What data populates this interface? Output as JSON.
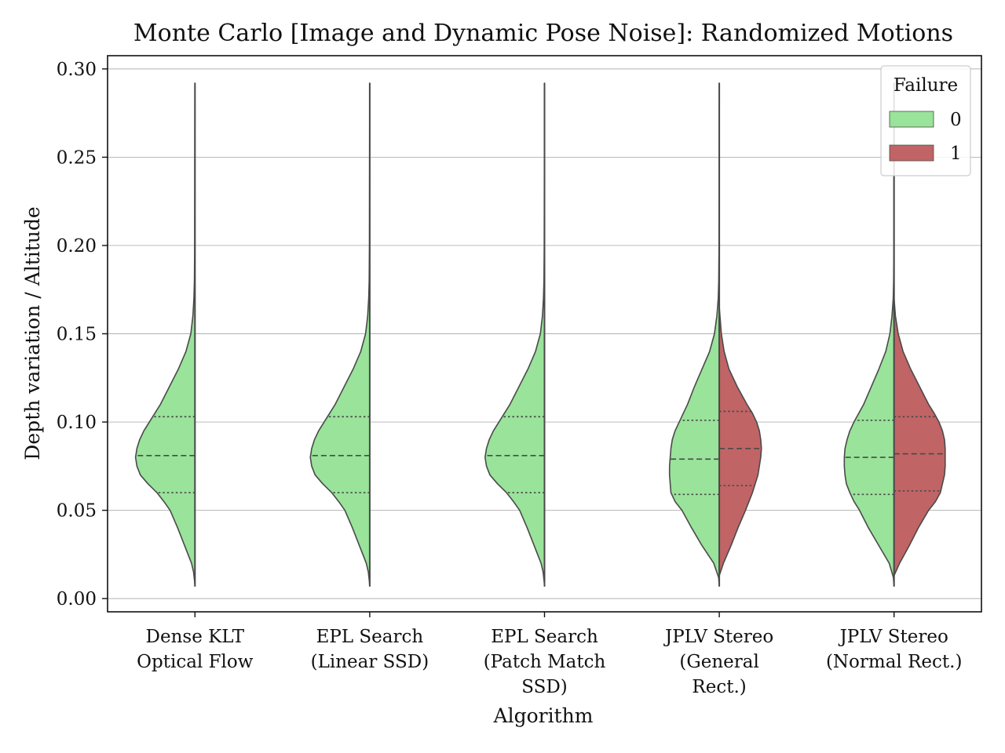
{
  "chart_data": {
    "type": "violin",
    "title": "Monte Carlo [Image and Dynamic Pose Noise]: Randomized Motions",
    "xlabel": "Algorithm",
    "ylabel": "Depth variation / Altitude",
    "ylim": [
      -0.0075,
      0.3075
    ],
    "yticks": [
      "0.00",
      "0.05",
      "0.10",
      "0.15",
      "0.20",
      "0.25",
      "0.30"
    ],
    "ytick_values": [
      0.0,
      0.05,
      0.1,
      0.15,
      0.2,
      0.25,
      0.3
    ],
    "grid": "horizontal",
    "split": true,
    "inner": "quartile",
    "legend": {
      "title": "Failure",
      "placement": "top-right",
      "entries": [
        "0",
        "1"
      ]
    },
    "colors": {
      "0": "#99e39a",
      "1": "#c16466",
      "outline": "#4a4a4a",
      "grid": "#b0b0b0"
    },
    "categories": [
      {
        "label_lines": [
          "Dense KLT",
          "Optical Flow"
        ]
      },
      {
        "label_lines": [
          "EPL Search",
          "(Linear SSD)"
        ]
      },
      {
        "label_lines": [
          "EPL Search",
          "(Patch Match",
          "SSD)"
        ]
      },
      {
        "label_lines": [
          "JPLV Stereo",
          "(General",
          "Rect.)"
        ]
      },
      {
        "label_lines": [
          "JPLV Stereo",
          "(Normal Rect.)"
        ]
      }
    ],
    "series": [
      {
        "name": "0",
        "side": "left",
        "violins": [
          {
            "category": 0,
            "y": [
              0.007,
              0.01,
              0.015,
              0.02,
              0.025,
              0.03,
              0.04,
              0.05,
              0.055,
              0.06,
              0.065,
              0.07,
              0.075,
              0.08,
              0.085,
              0.09,
              0.095,
              0.1,
              0.105,
              0.11,
              0.12,
              0.13,
              0.14,
              0.15,
              0.16,
              0.17,
              0.18,
              0.2,
              0.25,
              0.292
            ],
            "width": [
              0.0,
              0.006,
              0.02,
              0.05,
              0.1,
              0.15,
              0.25,
              0.36,
              0.45,
              0.55,
              0.68,
              0.79,
              0.84,
              0.86,
              0.84,
              0.8,
              0.74,
              0.66,
              0.58,
              0.5,
              0.37,
              0.24,
              0.13,
              0.06,
              0.03,
              0.015,
              0.008,
              0.004,
              0.002,
              0.0
            ],
            "quartiles": [
              0.06,
              0.081,
              0.103
            ]
          },
          {
            "category": 1,
            "y": [
              0.007,
              0.01,
              0.015,
              0.02,
              0.025,
              0.03,
              0.04,
              0.05,
              0.055,
              0.06,
              0.065,
              0.07,
              0.075,
              0.08,
              0.085,
              0.09,
              0.095,
              0.1,
              0.105,
              0.11,
              0.12,
              0.13,
              0.14,
              0.15,
              0.16,
              0.17,
              0.18,
              0.2,
              0.25,
              0.292
            ],
            "width": [
              0.0,
              0.006,
              0.02,
              0.05,
              0.1,
              0.15,
              0.25,
              0.36,
              0.45,
              0.55,
              0.68,
              0.79,
              0.84,
              0.86,
              0.84,
              0.8,
              0.74,
              0.66,
              0.58,
              0.5,
              0.37,
              0.24,
              0.13,
              0.06,
              0.03,
              0.015,
              0.008,
              0.004,
              0.002,
              0.0
            ],
            "quartiles": [
              0.06,
              0.081,
              0.103
            ]
          },
          {
            "category": 2,
            "y": [
              0.007,
              0.01,
              0.015,
              0.02,
              0.025,
              0.03,
              0.04,
              0.05,
              0.055,
              0.06,
              0.065,
              0.07,
              0.075,
              0.08,
              0.085,
              0.09,
              0.095,
              0.1,
              0.105,
              0.11,
              0.12,
              0.13,
              0.14,
              0.15,
              0.16,
              0.17,
              0.18,
              0.2,
              0.25,
              0.292
            ],
            "width": [
              0.0,
              0.006,
              0.02,
              0.05,
              0.1,
              0.15,
              0.25,
              0.36,
              0.45,
              0.55,
              0.68,
              0.79,
              0.84,
              0.86,
              0.84,
              0.8,
              0.74,
              0.66,
              0.58,
              0.5,
              0.37,
              0.24,
              0.13,
              0.06,
              0.03,
              0.015,
              0.008,
              0.004,
              0.002,
              0.0
            ],
            "quartiles": [
              0.06,
              0.081,
              0.103
            ]
          },
          {
            "category": 3,
            "y": [
              0.007,
              0.012,
              0.02,
              0.03,
              0.04,
              0.05,
              0.055,
              0.06,
              0.065,
              0.07,
              0.075,
              0.08,
              0.085,
              0.09,
              0.095,
              0.1,
              0.105,
              0.11,
              0.12,
              0.13,
              0.14,
              0.15,
              0.16,
              0.17,
              0.18,
              0.2,
              0.25,
              0.292
            ],
            "width": [
              0.0,
              0.01,
              0.08,
              0.25,
              0.4,
              0.54,
              0.64,
              0.7,
              0.71,
              0.72,
              0.72,
              0.71,
              0.7,
              0.68,
              0.64,
              0.58,
              0.52,
              0.46,
              0.36,
              0.25,
              0.14,
              0.07,
              0.035,
              0.015,
              0.008,
              0.004,
              0.002,
              0.0
            ],
            "quartiles": [
              0.059,
              0.079,
              0.101
            ]
          },
          {
            "category": 4,
            "y": [
              0.007,
              0.012,
              0.02,
              0.03,
              0.04,
              0.05,
              0.055,
              0.06,
              0.065,
              0.07,
              0.075,
              0.08,
              0.085,
              0.09,
              0.095,
              0.1,
              0.105,
              0.11,
              0.12,
              0.13,
              0.14,
              0.15,
              0.16,
              0.17,
              0.18,
              0.2,
              0.25,
              0.292
            ],
            "width": [
              0.0,
              0.01,
              0.07,
              0.22,
              0.37,
              0.5,
              0.58,
              0.64,
              0.69,
              0.71,
              0.72,
              0.72,
              0.71,
              0.68,
              0.64,
              0.58,
              0.51,
              0.44,
              0.33,
              0.22,
              0.12,
              0.06,
              0.03,
              0.012,
              0.006,
              0.003,
              0.002,
              0.0
            ],
            "quartiles": [
              0.059,
              0.08,
              0.101
            ]
          }
        ]
      },
      {
        "name": "1",
        "side": "right",
        "violins": [
          {
            "category": 3,
            "y": [
              0.013,
              0.02,
              0.03,
              0.04,
              0.05,
              0.055,
              0.06,
              0.065,
              0.07,
              0.075,
              0.08,
              0.085,
              0.09,
              0.095,
              0.1,
              0.105,
              0.11,
              0.12,
              0.13,
              0.14,
              0.15,
              0.16,
              0.165
            ],
            "width": [
              0.0,
              0.06,
              0.17,
              0.27,
              0.38,
              0.43,
              0.48,
              0.52,
              0.56,
              0.58,
              0.6,
              0.61,
              0.6,
              0.58,
              0.54,
              0.48,
              0.4,
              0.26,
              0.14,
              0.07,
              0.03,
              0.01,
              0.0
            ],
            "quartiles": [
              0.064,
              0.085,
              0.106
            ]
          },
          {
            "category": 4,
            "y": [
              0.013,
              0.02,
              0.03,
              0.04,
              0.05,
              0.055,
              0.06,
              0.065,
              0.07,
              0.075,
              0.08,
              0.085,
              0.09,
              0.095,
              0.1,
              0.105,
              0.11,
              0.12,
              0.13,
              0.14,
              0.15,
              0.16,
              0.17
            ],
            "width": [
              0.0,
              0.08,
              0.22,
              0.35,
              0.5,
              0.6,
              0.67,
              0.7,
              0.73,
              0.74,
              0.74,
              0.74,
              0.73,
              0.7,
              0.65,
              0.58,
              0.5,
              0.37,
              0.24,
              0.13,
              0.06,
              0.02,
              0.0
            ],
            "quartiles": [
              0.061,
              0.082,
              0.103
            ]
          }
        ]
      }
    ]
  }
}
